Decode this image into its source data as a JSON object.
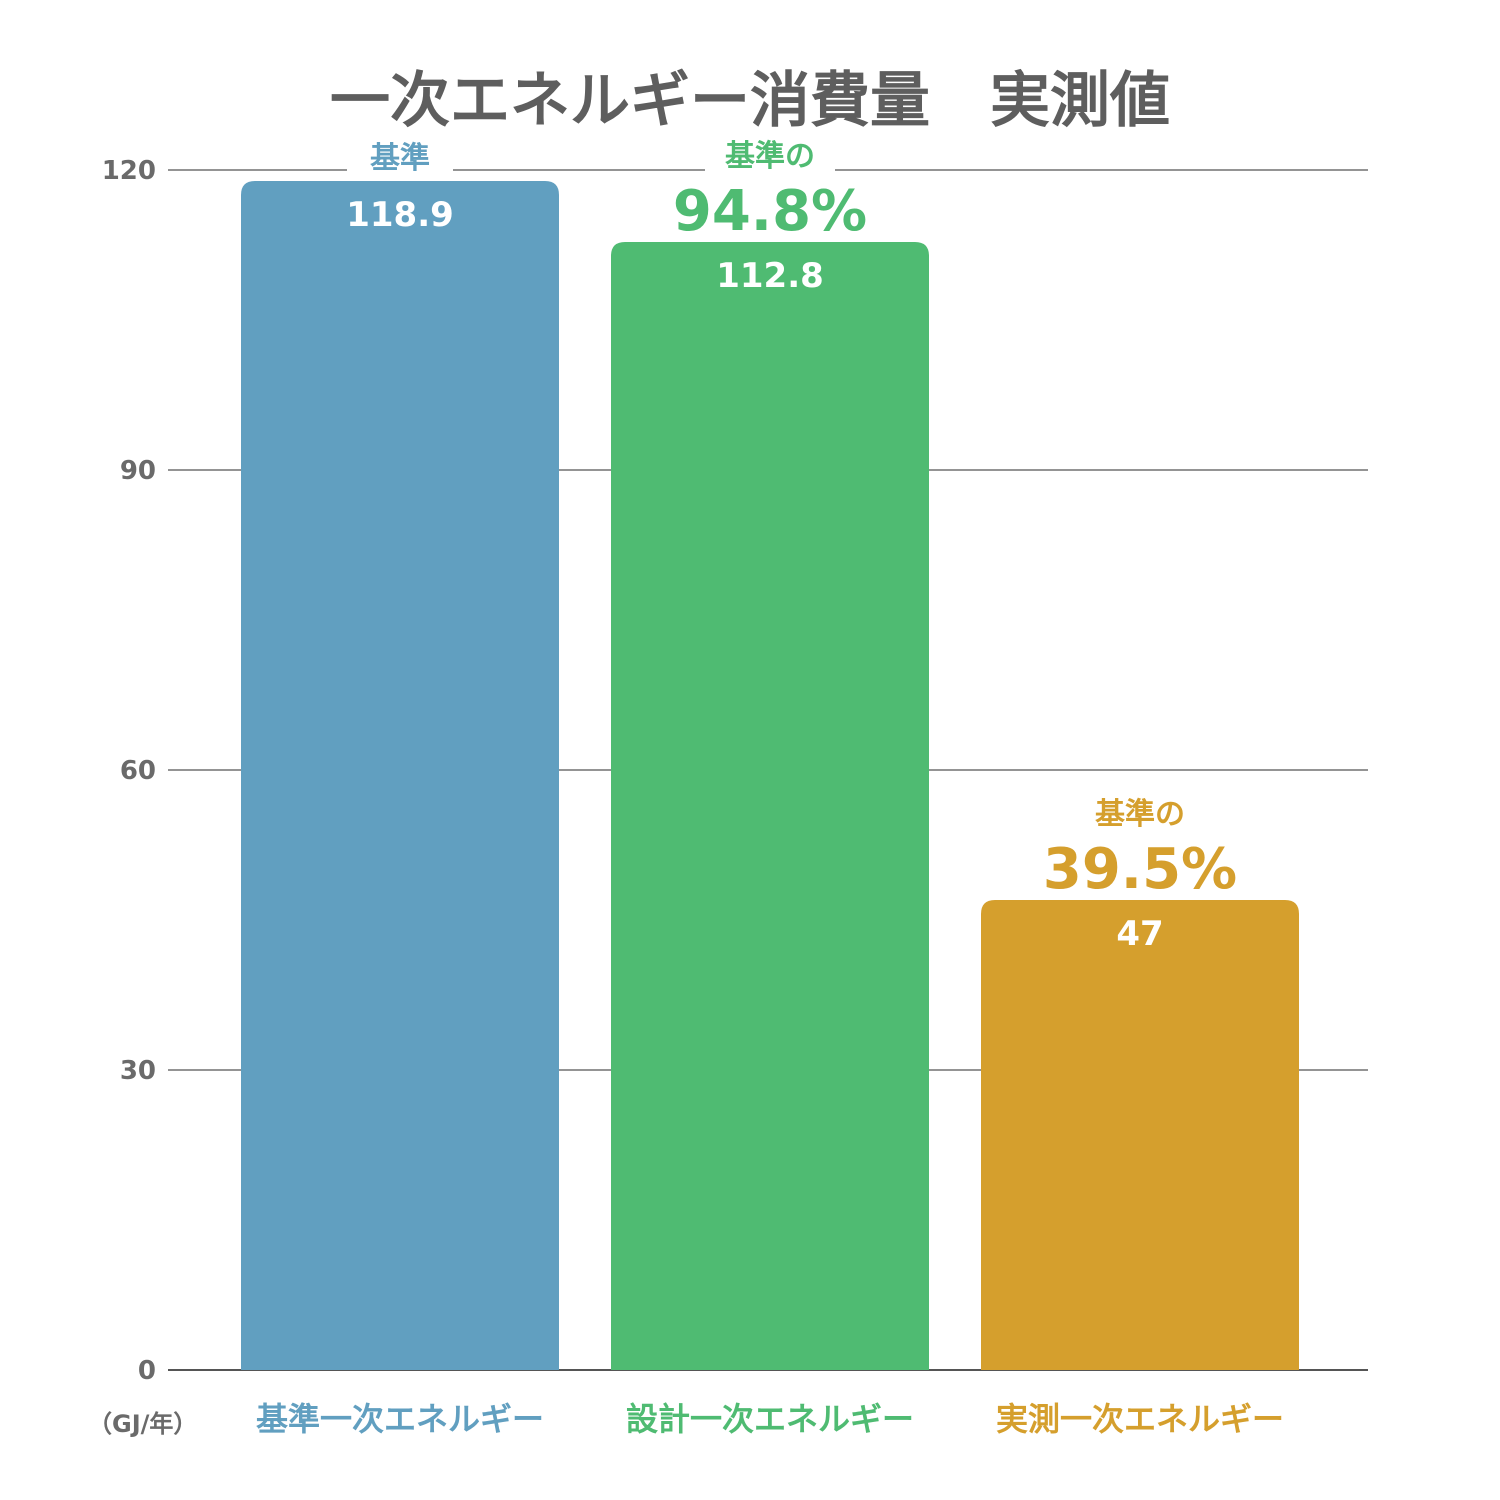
{
  "chart_data": {
    "type": "bar",
    "title": "一次エネルギー消費量　実測値",
    "unit_label": "（GJ/年）",
    "ylim": [
      0,
      120
    ],
    "yticks": [
      0,
      30,
      60,
      90,
      120
    ],
    "grid": true,
    "categories": [
      "基準一次エネルギー",
      "設計一次エネルギー",
      "実測一次エネルギー"
    ],
    "values": [
      118.9,
      112.8,
      47
    ],
    "value_labels": [
      "118.9",
      "112.8",
      "47"
    ],
    "annotations": [
      {
        "label": "基準",
        "percent": ""
      },
      {
        "label": "基準の",
        "percent": "94.8%"
      },
      {
        "label": "基準の",
        "percent": "39.5%"
      }
    ],
    "colors": [
      "#619fc0",
      "#4fbb72",
      "#d59f2d"
    ]
  },
  "axis_color": "#6a6a6a",
  "grid_color": "#555555",
  "title_color": "#5e5e5e"
}
